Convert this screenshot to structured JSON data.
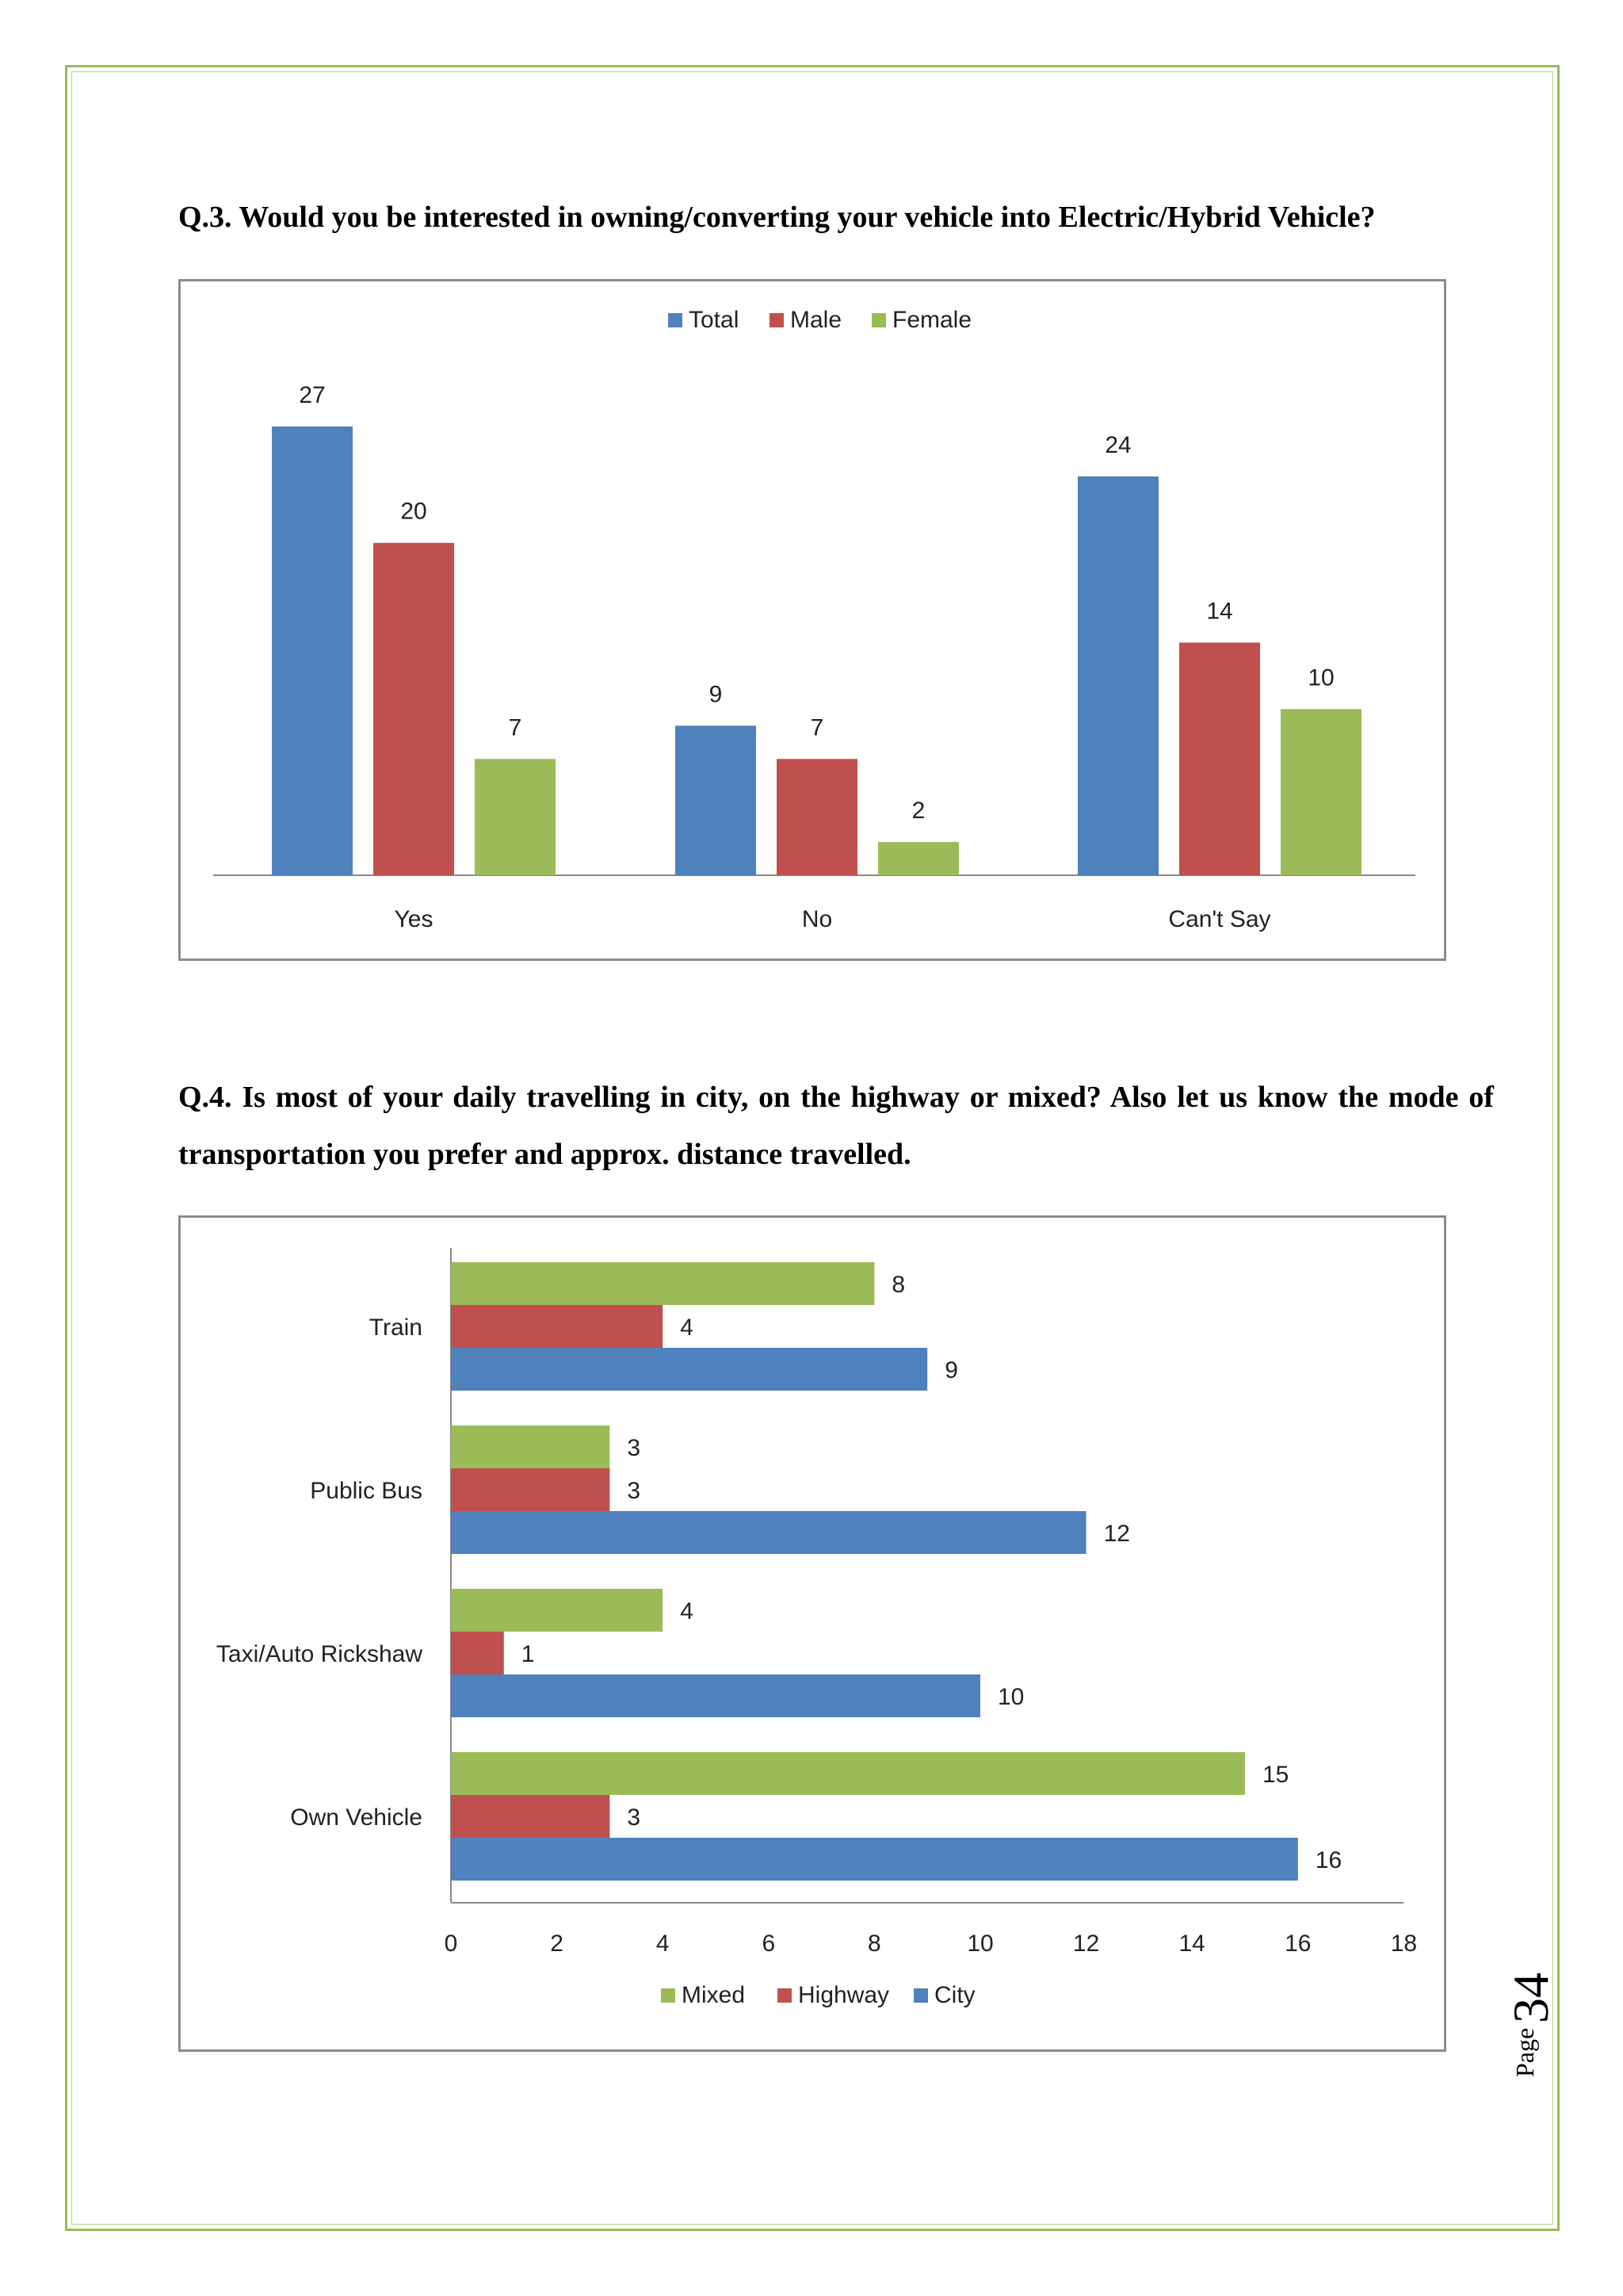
{
  "page": {
    "label": "Page",
    "number": "34"
  },
  "q3": {
    "question": "Q.3. Would you be interested in owning/converting your vehicle into Electric/Hybrid Vehicle?"
  },
  "q4": {
    "question": "Q.4. Is most of your daily travelling in city, on the highway or mixed? Also let us know the mode of transportation you prefer and approx. distance travelled."
  },
  "colors": {
    "blue": "#4f81bd",
    "red": "#c0504d",
    "green": "#9bbb59"
  },
  "chart_data": [
    {
      "type": "bar",
      "title": "",
      "categories": [
        "Yes",
        "No",
        "Can't Say"
      ],
      "series": [
        {
          "name": "Total",
          "color": "#4f81bd",
          "values": [
            27,
            9,
            24
          ]
        },
        {
          "name": "Male",
          "color": "#c0504d",
          "values": [
            20,
            7,
            14
          ]
        },
        {
          "name": "Female",
          "color": "#9bbb59",
          "values": [
            7,
            2,
            10
          ]
        }
      ],
      "ylim": [
        0,
        27
      ],
      "legend": "top",
      "xlabel": "",
      "ylabel": ""
    },
    {
      "type": "bar",
      "orientation": "horizontal",
      "title": "",
      "categories": [
        "Train",
        "Public Bus",
        "Taxi/Auto Rickshaw",
        "Own Vehicle"
      ],
      "series": [
        {
          "name": "Mixed",
          "color": "#9bbb59",
          "values": [
            8,
            3,
            4,
            15
          ]
        },
        {
          "name": "Highway",
          "color": "#c0504d",
          "values": [
            4,
            3,
            1,
            3
          ]
        },
        {
          "name": "City",
          "color": "#4f81bd",
          "values": [
            9,
            12,
            10,
            16
          ]
        }
      ],
      "xlim": [
        0,
        18
      ],
      "xticks": [
        "0",
        "2",
        "4",
        "6",
        "8",
        "10",
        "12",
        "14",
        "16",
        "18"
      ],
      "legend": "bottom",
      "xlabel": "",
      "ylabel": ""
    }
  ]
}
